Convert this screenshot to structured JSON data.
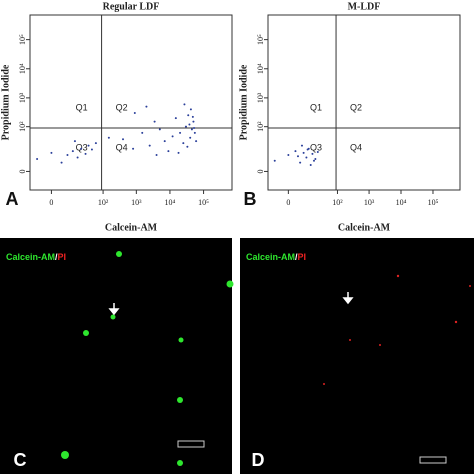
{
  "chart_data": [
    {
      "type": "scatter",
      "title": "Regular LDF",
      "panel_label": "A",
      "x_label": "Calcein-AM",
      "y_label": "Propidium Iodide",
      "scale": "symlog",
      "symlog_constant": 3,
      "xlim": [
        -10,
        700000
      ],
      "ylim": [
        -10,
        700000
      ],
      "xticks": [
        0,
        {
          "value": 100,
          "label": "10²"
        },
        {
          "value": 1000,
          "label": "10³"
        },
        {
          "value": 10000,
          "label": "10⁴"
        },
        {
          "value": 100000,
          "label": "10⁵"
        }
      ],
      "yticks": [
        0,
        {
          "value": 100,
          "label": "10²"
        },
        {
          "value": 1000,
          "label": "10³"
        },
        {
          "value": 10000,
          "label": "10⁴"
        },
        {
          "value": 100000,
          "label": "10⁵"
        }
      ],
      "quadrant_x": 90,
      "quadrant_y": 90,
      "quadrants": [
        "Q1",
        "Q2",
        "Q3",
        "Q4"
      ],
      "color": "#2a3f9a",
      "x": [
        -5,
        0,
        3,
        6,
        10,
        15,
        20,
        28,
        35,
        45,
        12,
        60,
        150,
        400,
        900,
        1500,
        2500,
        3500,
        5000,
        7000,
        9000,
        12000,
        15000,
        20000,
        25000,
        30000,
        35000,
        40000,
        45000,
        50000,
        55000,
        60000,
        42000,
        38000,
        33000,
        48000,
        52000,
        2000,
        4000,
        800,
        18000,
        27000
      ],
      "y": [
        5,
        10,
        3,
        8,
        12,
        6,
        15,
        9,
        20,
        14,
        30,
        25,
        40,
        35,
        300,
        60,
        20,
        150,
        80,
        30,
        12,
        45,
        200,
        60,
        25,
        100,
        250,
        40,
        80,
        150,
        60,
        30,
        400,
        120,
        18,
        220,
        90,
        500,
        8,
        15,
        10,
        600
      ]
    },
    {
      "type": "scatter",
      "title": "M-LDF",
      "panel_label": "B",
      "x_label": "Calcein-AM",
      "y_label": "Propidium Iodide",
      "scale": "symlog",
      "symlog_constant": 3,
      "xlim": [
        -10,
        700000
      ],
      "ylim": [
        -10,
        700000
      ],
      "xticks": [
        0,
        {
          "value": 100,
          "label": "10²"
        },
        {
          "value": 1000,
          "label": "10³"
        },
        {
          "value": 10000,
          "label": "10⁴"
        },
        {
          "value": 100000,
          "label": "10⁵"
        }
      ],
      "yticks": [
        0,
        {
          "value": 100,
          "label": "10²"
        },
        {
          "value": 1000,
          "label": "10³"
        },
        {
          "value": 10000,
          "label": "10⁴"
        },
        {
          "value": 100000,
          "label": "10⁵"
        }
      ],
      "quadrant_x": 90,
      "quadrant_y": 90,
      "quadrants": [
        "Q1",
        "Q2",
        "Q3",
        "Q4"
      ],
      "color": "#2a3f9a",
      "x": [
        -5,
        0,
        2,
        4,
        6,
        8,
        10,
        14,
        18,
        22,
        5,
        12,
        3,
        9,
        16
      ],
      "y": [
        4,
        8,
        12,
        3,
        10,
        6,
        15,
        9,
        5,
        11,
        20,
        2,
        7,
        14,
        4
      ]
    }
  ],
  "images": [
    {
      "panel_label": "C",
      "label_green": "Calcein-AM",
      "label_sep": "/",
      "label_red": "PI"
    },
    {
      "panel_label": "D",
      "label_green": "Calcein-AM",
      "label_sep": "/",
      "label_red": "PI"
    }
  ]
}
